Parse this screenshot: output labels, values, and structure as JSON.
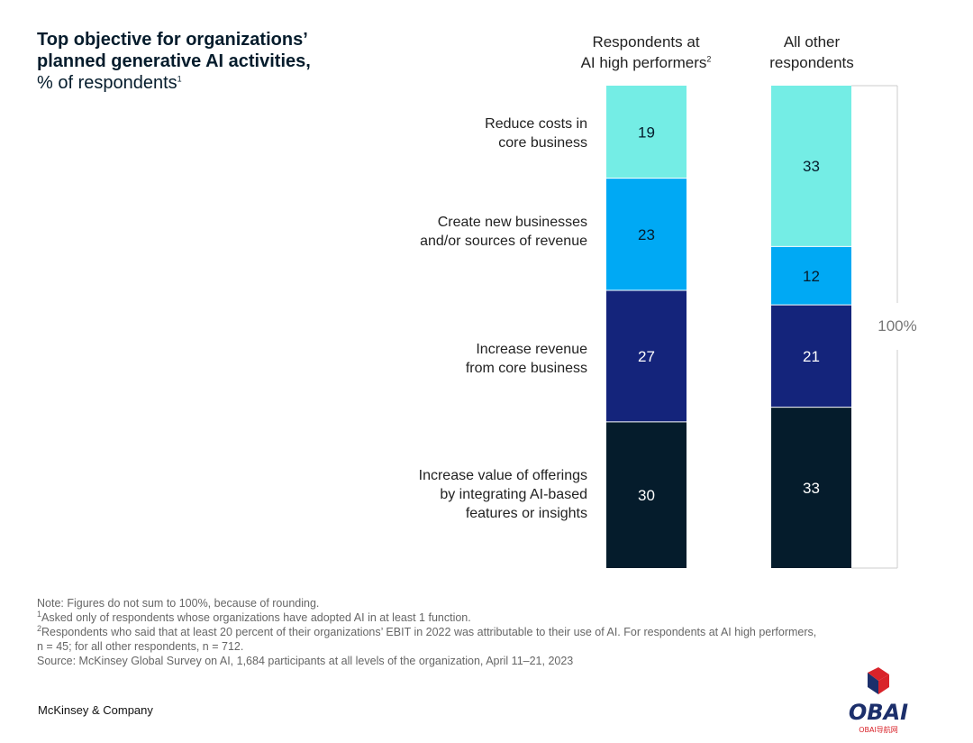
{
  "title": {
    "line1": "Top objective for organizations’",
    "line2": "planned generative AI activities,",
    "sub": "% of respondents",
    "sub_sup": "1"
  },
  "columns": [
    {
      "label_line1": "Respondents at",
      "label_line2": "AI high performers",
      "label_sup": "2"
    },
    {
      "label_line1": "All other",
      "label_line2": "respondents",
      "label_sup": ""
    }
  ],
  "categories": [
    {
      "lines": [
        "Reduce costs in",
        "core business"
      ]
    },
    {
      "lines": [
        "Create new businesses",
        "and/or sources of revenue"
      ]
    },
    {
      "lines": [
        "Increase revenue",
        "from core business"
      ]
    },
    {
      "lines": [
        "Increase value of offerings",
        "by integrating AI-based",
        "features or insights"
      ]
    }
  ],
  "chart_data": {
    "type": "bar",
    "stacked": true,
    "categories": [
      "Respondents at AI high performers",
      "All other respondents"
    ],
    "series": [
      {
        "name": "Reduce costs in core business",
        "values": [
          19,
          33
        ],
        "color": "#74ede5"
      },
      {
        "name": "Create new businesses and/or sources of revenue",
        "values": [
          23,
          12
        ],
        "color": "#00a9f4"
      },
      {
        "name": "Increase revenue from core business",
        "values": [
          27,
          21
        ],
        "color": "#14247b"
      },
      {
        "name": "Increase value of offerings by integrating AI-based features or insights",
        "values": [
          30,
          33
        ],
        "color": "#051c2c"
      }
    ],
    "total_label": "100%",
    "ylim": [
      0,
      100
    ]
  },
  "notes": {
    "note": "Note: Figures do not sum to 100%, because of rounding.",
    "fn1_sup": "1",
    "fn1": "Asked only of respondents whose organizations have adopted AI in at least 1 function.",
    "fn2_sup": "2",
    "fn2": "Respondents who said that at least 20 percent of their organizations’ EBIT in 2022 was attributable to their use of AI. For respondents at AI high performers,",
    "fn2_cont": "n = 45; for all other respondents, n = 712.",
    "source": "Source: McKinsey Global Survey on AI, 1,684 participants at all levels of the organization, April 11–21, 2023"
  },
  "brand": "McKinsey & Company",
  "watermark": {
    "main": "OBAI",
    "sub": "OBAI导航网"
  }
}
